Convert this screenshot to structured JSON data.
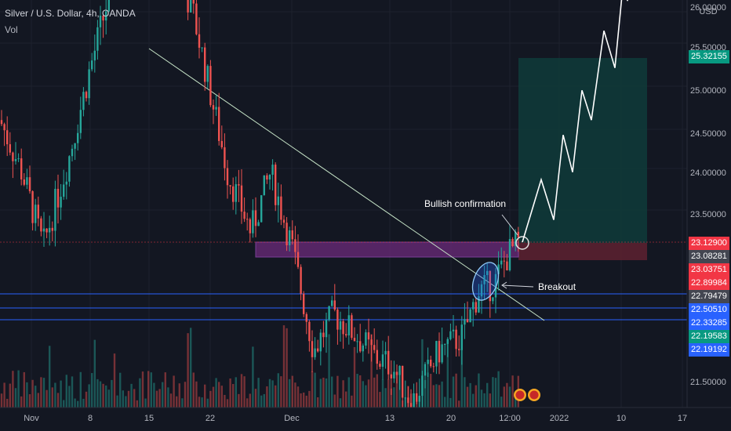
{
  "header": {
    "title": "Silver / U.S. Dollar, 4h, OANDA",
    "indicator": "Vol"
  },
  "price_axis": {
    "currency": "USD",
    "ticks": [
      "26.00000",
      "25.50000",
      "25.00000",
      "24.50000",
      "24.00000",
      "23.50000",
      "21.50000"
    ]
  },
  "price_tags": [
    {
      "label": "25.32155",
      "color": "#089981"
    },
    {
      "label": "23.12900",
      "color": "#f23645"
    },
    {
      "label": "23.08281",
      "color": "#434651"
    },
    {
      "label": "23.03751",
      "color": "#f23645"
    },
    {
      "label": "22.89984",
      "color": "#f23645"
    },
    {
      "label": "22.79479",
      "color": "#434651"
    },
    {
      "label": "22.50510",
      "color": "#2962ff"
    },
    {
      "label": "22.33285",
      "color": "#2962ff"
    },
    {
      "label": "22.19583",
      "color": "#089981"
    },
    {
      "label": "22.19192",
      "color": "#2962ff"
    }
  ],
  "time_axis": [
    "Nov",
    "8",
    "15",
    "22",
    "Dec",
    "13",
    "20",
    "12:00",
    "2022",
    "10",
    "17"
  ],
  "annotations": {
    "bullish": "Bullish confirmation",
    "breakout": "Breakout"
  },
  "colors": {
    "up": "#26a69a",
    "down": "#ef5350",
    "background": "#131722",
    "grid": "#1e222d",
    "target_zone": "#0f3b3a",
    "stop_zone": "#5a2030",
    "resistance_zone": "#6b2a7a",
    "support_line": "#2962ff"
  },
  "chart_data": {
    "type": "candlestick",
    "symbol": "XAGUSD",
    "timeframe": "4h",
    "ylim": [
      21.3,
      26.1
    ],
    "close_path": [
      {
        "x": "Nov 1",
        "y": 23.95
      },
      {
        "x": "Nov 3",
        "y": 23.6
      },
      {
        "x": "Nov 5",
        "y": 23.1
      },
      {
        "x": "Nov 8",
        "y": 23.7
      },
      {
        "x": "Nov 10",
        "y": 24.3
      },
      {
        "x": "Nov 12",
        "y": 24.8
      },
      {
        "x": "Nov 15",
        "y": 25.3
      },
      {
        "x": "Nov 17",
        "y": 25.1
      },
      {
        "x": "Nov 19",
        "y": 25.05
      },
      {
        "x": "Nov 22",
        "y": 24.7
      },
      {
        "x": "Nov 24",
        "y": 23.6
      },
      {
        "x": "Nov 26",
        "y": 23.2
      },
      {
        "x": "Nov 29",
        "y": 23.6
      },
      {
        "x": "Dec 1",
        "y": 23.1
      },
      {
        "x": "Dec 3",
        "y": 22.4
      },
      {
        "x": "Dec 6",
        "y": 22.65
      },
      {
        "x": "Dec 8",
        "y": 22.5
      },
      {
        "x": "Dec 10",
        "y": 22.35
      },
      {
        "x": "Dec 13",
        "y": 22.3
      },
      {
        "x": "Dec 15",
        "y": 22.05
      },
      {
        "x": "Dec 17",
        "y": 22.4
      },
      {
        "x": "Dec 20",
        "y": 22.5
      },
      {
        "x": "Dec 21",
        "y": 22.8
      },
      {
        "x": "Dec 22",
        "y": 22.85
      },
      {
        "x": "Dec 23",
        "y": 23.05
      },
      {
        "x": "Dec 24",
        "y": 23.13
      }
    ],
    "projection": [
      23.13,
      23.55,
      23.28,
      23.85,
      23.6,
      24.15,
      23.95,
      24.55,
      24.3,
      24.95,
      24.75,
      25.28
    ],
    "target_zone": [
      23.13,
      25.35
    ],
    "stop_zone": [
      22.9,
      23.13
    ],
    "resistance_zone": [
      22.92,
      23.12
    ],
    "support_lines": [
      22.505,
      22.333,
      22.192
    ]
  }
}
